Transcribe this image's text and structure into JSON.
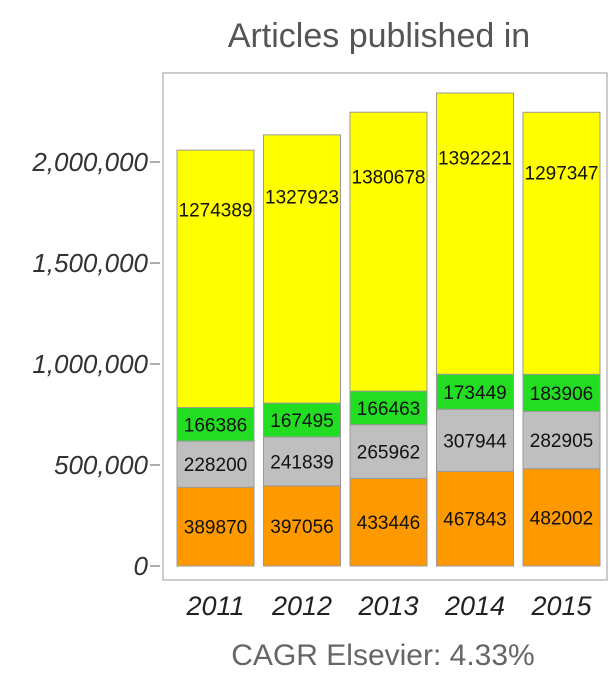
{
  "chart_data": {
    "type": "bar",
    "stacked": true,
    "title": "Articles published in",
    "footer": "CAGR Elsevier: 4.33%",
    "categories": [
      "2011",
      "2012",
      "2013",
      "2014",
      "2015"
    ],
    "series": [
      {
        "values": [
          389870,
          397056,
          433446,
          467843,
          482002
        ],
        "color": "#ff9900"
      },
      {
        "values": [
          228200,
          241839,
          265962,
          307944,
          282905
        ],
        "color": "#bfbfbf"
      },
      {
        "values": [
          166386,
          167495,
          166463,
          173449,
          183906
        ],
        "color": "#22dd22"
      },
      {
        "values": [
          1274389,
          1327923,
          1380678,
          1392221,
          1297347
        ],
        "color": "#ffff00"
      }
    ],
    "yticks": [
      "0",
      "500,000",
      "1,000,000",
      "1,500,000",
      "2,000,000"
    ],
    "ytick_values": [
      0,
      500000,
      1000000,
      1500000,
      2000000
    ],
    "ylim": [
      0,
      2380000
    ],
    "grid": false,
    "legend": "none"
  }
}
